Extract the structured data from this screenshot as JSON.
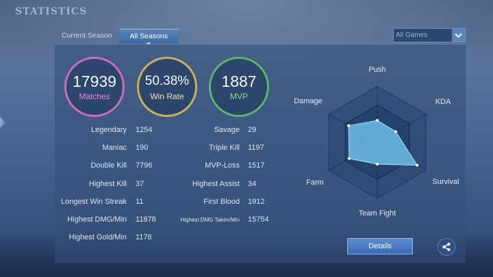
{
  "header": {
    "title": "STATISTICS"
  },
  "tabs": [
    {
      "label": "Current Season",
      "active": false
    },
    {
      "label": "All Seasons",
      "active": true
    }
  ],
  "filter": {
    "selected": "All Games"
  },
  "summary": {
    "matches": {
      "value": "17939",
      "label": "Matches"
    },
    "win_rate": {
      "value": "50.38%",
      "label": "Win Rate"
    },
    "mvp": {
      "value": "1887",
      "label": "MVP"
    }
  },
  "stats_left": [
    {
      "label": "Legendary",
      "value": "1254"
    },
    {
      "label": "Maniac",
      "value": "190"
    },
    {
      "label": "Double Kill",
      "value": "7796"
    },
    {
      "label": "Highest Kill",
      "value": "37"
    },
    {
      "label": "Longest Win Streak",
      "value": "11"
    },
    {
      "label": "Highest DMG/Min",
      "value": "11878"
    },
    {
      "label": "Highest Gold/Min",
      "value": "1178"
    }
  ],
  "stats_right": [
    {
      "label": "Savage",
      "value": "29"
    },
    {
      "label": "Triple Kill",
      "value": "1197"
    },
    {
      "label": "MVP-Loss",
      "value": "1517"
    },
    {
      "label": "Highest Assist",
      "value": "34"
    },
    {
      "label": "First Blood",
      "value": "1912"
    },
    {
      "label": "Highest DMG Taken/Min",
      "value": "15754"
    }
  ],
  "radar": {
    "axes": [
      "Push",
      "KDA",
      "Survival",
      "Team Fight",
      "Farm",
      "Damage"
    ],
    "values": [
      0.39,
      0.38,
      0.82,
      0.39,
      0.58,
      0.59
    ]
  },
  "actions": {
    "details_label": "Details"
  },
  "icons": {
    "share": "share-icon",
    "dropdown": "chevron-down-icon",
    "back": "left-arrow-icon"
  },
  "colors": {
    "matches_ring": "#c96cc4",
    "winrate_ring": "#c9b25a",
    "mvp_ring": "#56b869",
    "radar_fill": "#6fc3ef",
    "button": "#4a7bc4"
  }
}
